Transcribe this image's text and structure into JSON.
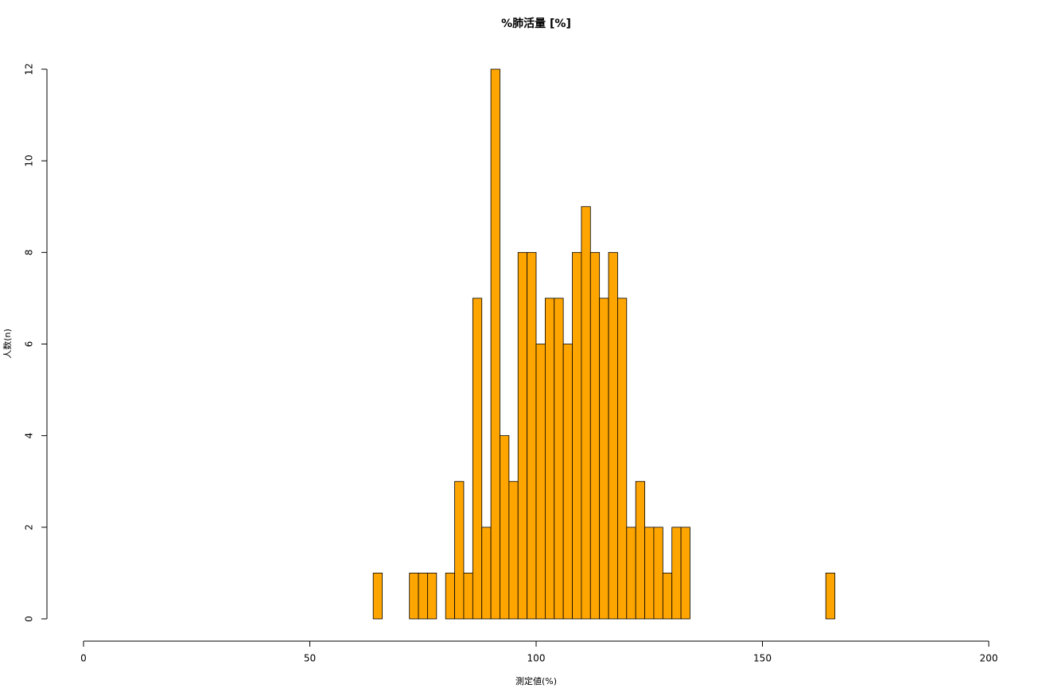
{
  "chart_data": {
    "type": "histogram",
    "title": "%肺活量 [%]",
    "x_label": "測定値(%)",
    "y_label": "人数(n)",
    "bins": [
      64,
      66,
      68,
      70,
      72,
      74,
      76,
      78,
      80,
      82,
      84,
      86,
      88,
      90,
      92,
      94,
      96,
      98,
      100,
      102,
      104,
      106,
      108,
      110,
      112,
      114,
      116,
      118,
      120,
      122,
      124,
      126,
      128,
      130,
      132,
      134,
      136,
      138,
      140,
      142,
      144,
      146,
      148,
      150,
      152,
      154,
      156,
      158,
      160,
      162,
      164,
      166
    ],
    "counts": [
      1,
      0,
      0,
      0,
      1,
      1,
      1,
      0,
      1,
      3,
      1,
      7,
      2,
      12,
      4,
      3,
      8,
      8,
      6,
      7,
      7,
      6,
      8,
      9,
      8,
      7,
      8,
      7,
      2,
      3,
      2,
      2,
      1,
      2,
      2,
      0,
      0,
      0,
      0,
      0,
      0,
      0,
      0,
      0,
      0,
      0,
      0,
      0,
      0,
      0,
      1
    ],
    "color": "#FFA500",
    "edge_color": "#000000",
    "xlim": [
      0,
      200
    ],
    "xticks": [
      0,
      50,
      100,
      150,
      200
    ],
    "ylim": [
      0,
      12
    ],
    "yticks": [
      0,
      2,
      4,
      6,
      8,
      10,
      12
    ]
  }
}
